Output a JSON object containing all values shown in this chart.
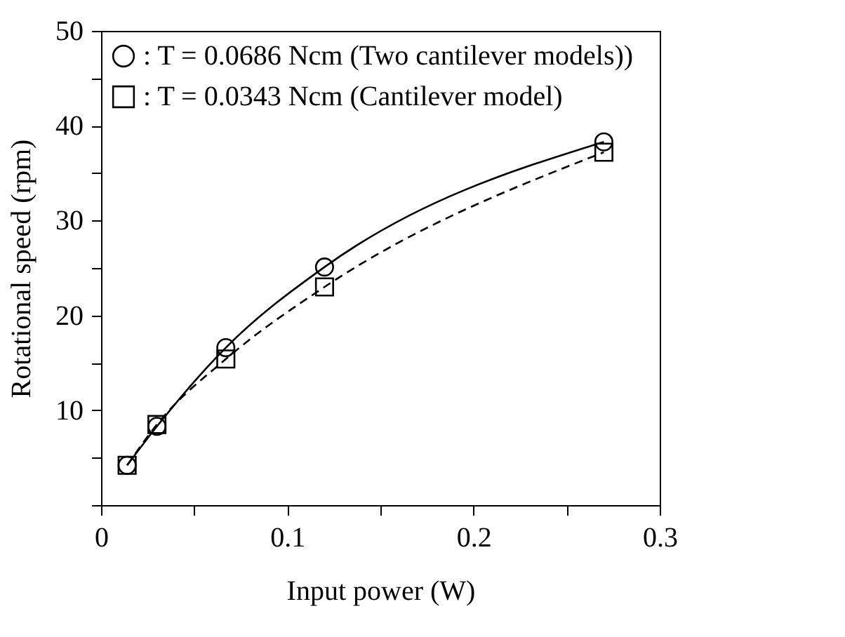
{
  "chart_data": {
    "type": "line",
    "xlabel": "Input power (W)",
    "ylabel": "Rotational speed (rpm)",
    "x": [
      0.014,
      0.03,
      0.067,
      0.12,
      0.27
    ],
    "series": [
      {
        "name": ": T = 0.0686 Ncm (Two cantilever models))",
        "color": "#000000",
        "values": [
          4.2,
          8.3,
          16.6,
          25.1,
          38.3
        ],
        "marker": "circle",
        "line_style": "solid"
      },
      {
        "name": ": T = 0.0343 Ncm (Cantilever model)",
        "color": "#000000",
        "values": [
          4.2,
          8.5,
          15.4,
          23.0,
          37.2
        ],
        "marker": "square",
        "line_style": "dashed"
      }
    ],
    "xlim": [
      0,
      0.3
    ],
    "ylim": [
      0,
      50
    ],
    "xticks": [
      0,
      {
        "value": 0.05,
        "label": null
      },
      0.1,
      {
        "value": 0.15,
        "label": null
      },
      0.2,
      {
        "value": 0.25,
        "label": null
      },
      0.3
    ],
    "yticks": [
      {
        "value": 0,
        "label": null
      },
      {
        "value": 5,
        "label": null
      },
      10,
      {
        "value": 15,
        "label": null
      },
      20,
      {
        "value": 25,
        "label": null
      },
      30,
      {
        "value": 35,
        "label": null
      },
      40,
      {
        "value": 45,
        "label": null
      },
      50
    ],
    "grid": false,
    "legend": "top left"
  }
}
